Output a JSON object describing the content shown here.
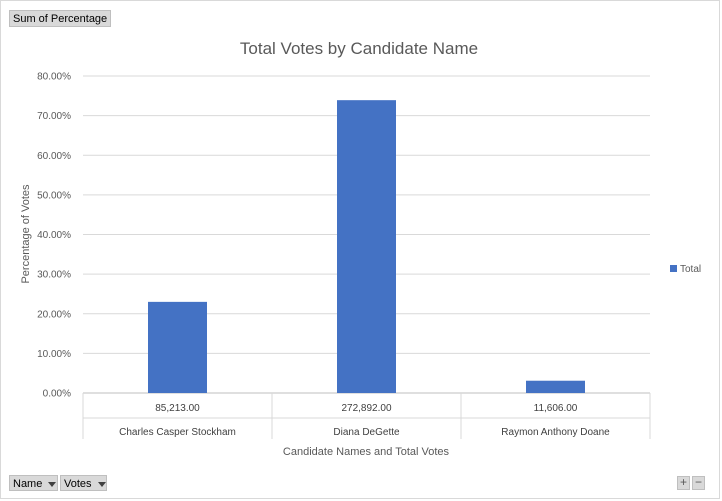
{
  "pivot": {
    "value_field": "Sum of Percentage",
    "row_fields": [
      "Name",
      "Votes"
    ]
  },
  "chart_data": {
    "type": "bar",
    "title": "Total Votes by Candidate Name",
    "xlabel": "Candidate Names and Total Votes",
    "ylabel": "Percentage of Votes",
    "ylim": [
      0,
      80
    ],
    "y_ticks": [
      "0.00%",
      "10.00%",
      "20.00%",
      "30.00%",
      "40.00%",
      "50.00%",
      "60.00%",
      "70.00%",
      "80.00%"
    ],
    "categories": [
      {
        "name": "Charles Casper Stockham",
        "votes": "85,213.00"
      },
      {
        "name": "Diana DeGette",
        "votes": "272,892.00"
      },
      {
        "name": "Raymon Anthony Doane",
        "votes": "11,606.00"
      }
    ],
    "series": [
      {
        "name": "Total",
        "values": [
          23.0,
          73.9,
          3.1
        ],
        "color": "#4472C4"
      }
    ],
    "legend": "right",
    "grid": true
  },
  "controls": {
    "zoom_in": "+",
    "zoom_out": "−"
  }
}
